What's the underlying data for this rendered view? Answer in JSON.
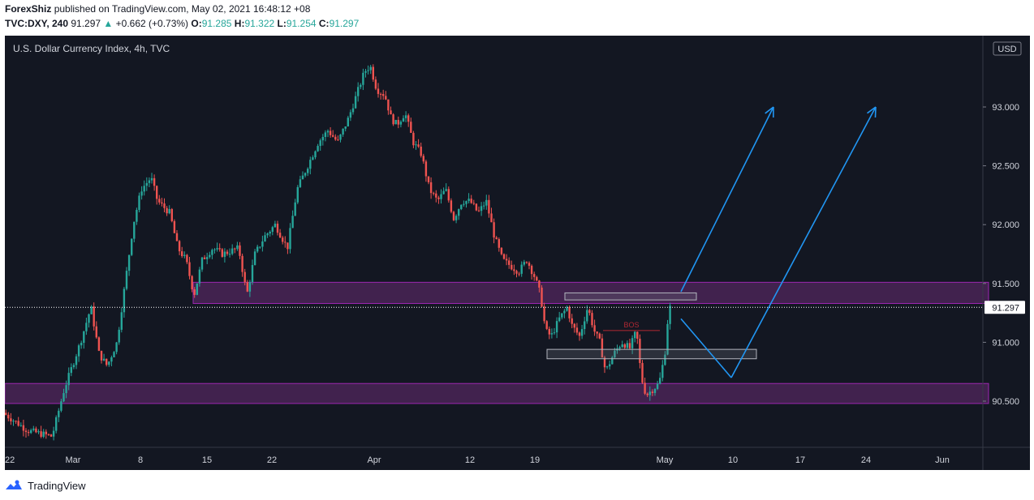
{
  "header": {
    "publisher": "ForexShiz",
    "published_text": "published on TradingView.com, May 02, 2021 16:48:12 +08",
    "symbol": "TVC:DXY, 240",
    "last_price": "91.297",
    "change_arrow": "▲",
    "change": "+0.662 (+0.73%)",
    "open_label": "O:",
    "open": "91.285",
    "high_label": "H:",
    "high": "91.322",
    "low_label": "L:",
    "low": "91.254",
    "close_label": "C:",
    "close": "91.297"
  },
  "chart_data": {
    "type": "candlestick",
    "title": "U.S. Dollar Currency Index, 4h, TVC",
    "currency_label": "USD",
    "ylim": [
      90.0,
      93.5
    ],
    "y_ticks": [
      "93.000",
      "92.500",
      "92.000",
      "91.500",
      "91.000",
      "90.500"
    ],
    "x_ticks": [
      "22",
      "Mar",
      "8",
      "15",
      "22",
      "Apr",
      "12",
      "19",
      "May",
      "10",
      "17",
      "24",
      "Jun"
    ],
    "current_price_label": "91.297",
    "current_price": 91.297,
    "price_path": [
      [
        0,
        90.4
      ],
      [
        30,
        90.25
      ],
      [
        60,
        90.2
      ],
      [
        75,
        90.6
      ],
      [
        95,
        91.0
      ],
      [
        108,
        91.3
      ],
      [
        118,
        90.9
      ],
      [
        128,
        90.8
      ],
      [
        140,
        91.0
      ],
      [
        150,
        91.5
      ],
      [
        160,
        92.0
      ],
      [
        170,
        92.3
      ],
      [
        182,
        92.4
      ],
      [
        190,
        92.2
      ],
      [
        205,
        92.1
      ],
      [
        215,
        91.8
      ],
      [
        225,
        91.7
      ],
      [
        235,
        91.4
      ],
      [
        245,
        91.7
      ],
      [
        258,
        91.8
      ],
      [
        270,
        91.75
      ],
      [
        290,
        91.8
      ],
      [
        300,
        91.4
      ],
      [
        310,
        91.75
      ],
      [
        322,
        91.9
      ],
      [
        335,
        92.0
      ],
      [
        350,
        91.8
      ],
      [
        362,
        92.3
      ],
      [
        375,
        92.5
      ],
      [
        388,
        92.7
      ],
      [
        400,
        92.8
      ],
      [
        412,
        92.7
      ],
      [
        425,
        92.9
      ],
      [
        435,
        93.1
      ],
      [
        445,
        93.3
      ],
      [
        452,
        93.35
      ],
      [
        460,
        93.15
      ],
      [
        470,
        93.1
      ],
      [
        478,
        92.9
      ],
      [
        485,
        92.85
      ],
      [
        495,
        92.95
      ],
      [
        505,
        92.7
      ],
      [
        515,
        92.6
      ],
      [
        525,
        92.3
      ],
      [
        535,
        92.2
      ],
      [
        545,
        92.3
      ],
      [
        555,
        92.05
      ],
      [
        565,
        92.2
      ],
      [
        575,
        92.2
      ],
      [
        585,
        92.1
      ],
      [
        595,
        92.2
      ],
      [
        605,
        91.9
      ],
      [
        615,
        91.7
      ],
      [
        625,
        91.65
      ],
      [
        635,
        91.6
      ],
      [
        645,
        91.7
      ],
      [
        655,
        91.55
      ],
      [
        662,
        91.4
      ],
      [
        668,
        91.1
      ],
      [
        675,
        91.05
      ],
      [
        685,
        91.2
      ],
      [
        695,
        91.3
      ],
      [
        700,
        91.15
      ],
      [
        710,
        91.05
      ],
      [
        720,
        91.3
      ],
      [
        728,
        91.1
      ],
      [
        735,
        91.0
      ],
      [
        742,
        90.75
      ],
      [
        752,
        90.9
      ],
      [
        762,
        91.0
      ],
      [
        772,
        90.95
      ],
      [
        780,
        91.1
      ],
      [
        786,
        90.7
      ],
      [
        792,
        90.55
      ],
      [
        800,
        90.6
      ],
      [
        808,
        90.65
      ],
      [
        815,
        90.9
      ],
      [
        820,
        91.297
      ]
    ],
    "zones": [
      {
        "name": "supply-zone",
        "from_x": 232,
        "to_x": 1212,
        "top": 91.51,
        "bottom": 91.33
      },
      {
        "name": "demand-zone",
        "from_x": 0,
        "to_x": 1212,
        "top": 90.65,
        "bottom": 90.48
      }
    ],
    "rect_upper": {
      "from_x": 690,
      "to_x": 852,
      "top": 91.42,
      "bottom": 91.36
    },
    "rect_lower": {
      "from_x": 668,
      "to_x": 926,
      "top": 90.94,
      "bottom": 90.86
    },
    "bos_label": "BOS",
    "bos_line": {
      "from_x": 737,
      "to_x": 807,
      "y": 91.1
    },
    "projection_arrows": [
      {
        "from": [
          833,
          91.43
        ],
        "to": [
          947,
          93.0
        ]
      },
      {
        "from": [
          833,
          91.2
        ],
        "to": [
          895,
          90.7
        ]
      },
      {
        "from": [
          895,
          90.7
        ],
        "to": [
          1073,
          93.0
        ]
      }
    ],
    "last_bar_x": 820
  },
  "footer": {
    "brand": "TradingView"
  },
  "colors": {
    "background": "#131722",
    "up_candle": "#26a69a",
    "down_candle": "#ef5350",
    "zone_fill": "#4a2456",
    "zone_border": "#9c27b0",
    "arrow": "#2196f3",
    "bos": "#b22833"
  }
}
